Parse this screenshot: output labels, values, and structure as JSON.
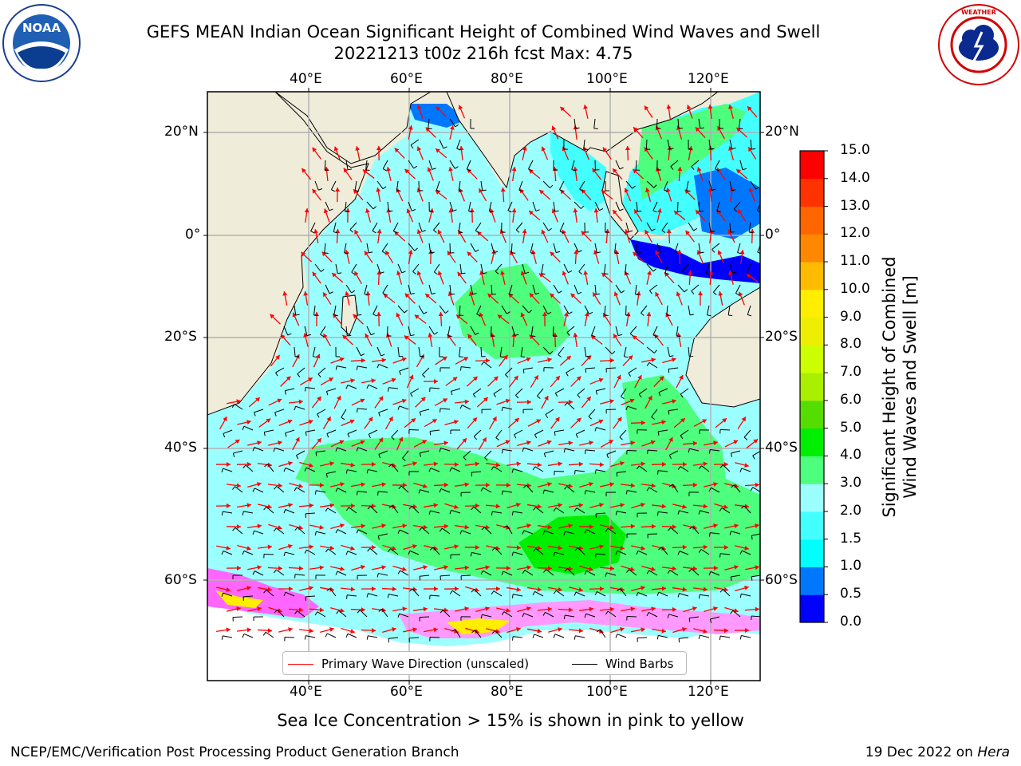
{
  "header": {
    "title_line1": "GEFS MEAN Indian Ocean Significant Height of Combined Wind Waves and Swell",
    "title_line2": "20221213 t00z 216h fcst   Max: 4.75"
  },
  "logos": {
    "left": "noaa-logo",
    "right": "nws-logo"
  },
  "map": {
    "lon_ticks": [
      "40°E",
      "60°E",
      "80°E",
      "100°E",
      "120°E"
    ],
    "lat_ticks": [
      "20°N",
      "0°",
      "20°S",
      "40°S",
      "60°S"
    ],
    "colors": {
      "land": "#efecd9",
      "ice": "#ff66ff",
      "wave_direction": "#ff0000",
      "wind_barb": "#000000"
    }
  },
  "colorbar": {
    "label_line1": "Significant Height of Combined",
    "label_line2": "Wind Waves and Swell [m]",
    "ticks": [
      "0.0",
      "0.5",
      "1.0",
      "1.5",
      "2.0",
      "3.0",
      "4.0",
      "5.0",
      "6.0",
      "7.0",
      "8.0",
      "9.0",
      "10.0",
      "11.0",
      "12.0",
      "13.0",
      "14.0",
      "15.0"
    ],
    "colors": [
      "#0000ff",
      "#0077ff",
      "#00ffff",
      "#44ffff",
      "#9cffff",
      "#4dff7c",
      "#00ee00",
      "#55dd00",
      "#aaee00",
      "#ccff00",
      "#eeee00",
      "#ffee00",
      "#ffbb00",
      "#ff8800",
      "#ff6600",
      "#ff3300",
      "#ff0000"
    ]
  },
  "legend": {
    "wave_direction_label": "Primary Wave Direction (unscaled)",
    "wind_barbs_label": "Wind Barbs"
  },
  "notes": {
    "sea_ice": "Sea Ice Concentration > 15% is shown in pink to yellow"
  },
  "footer": {
    "left": "NCEP/EMC/Verification Post Processing Product Generation Branch",
    "right_date": "19 Dec 2022 on ",
    "right_host": "Hera"
  }
}
